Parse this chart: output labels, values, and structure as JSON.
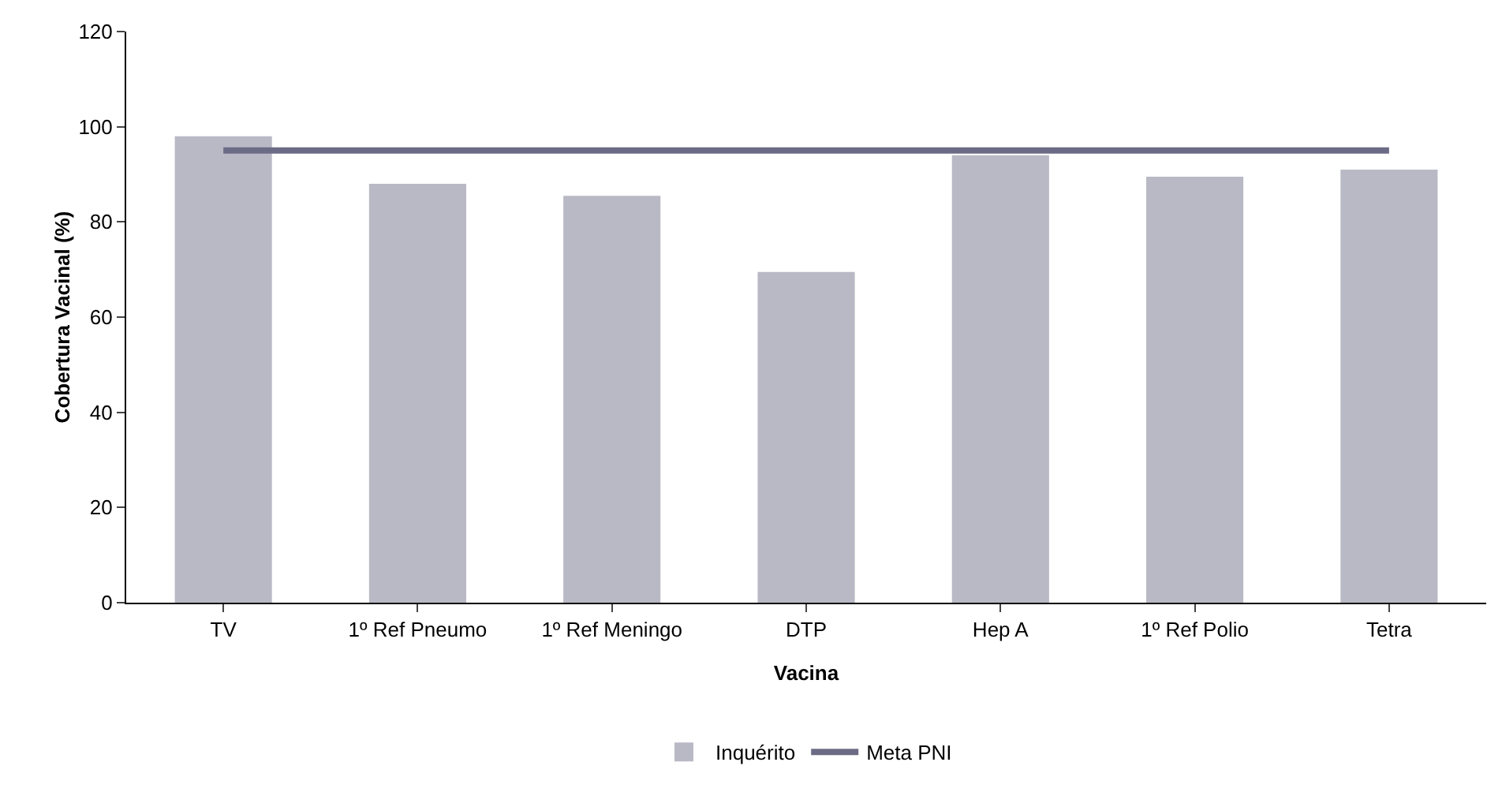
{
  "chart_data": {
    "type": "bar",
    "xlabel": "Vacina",
    "ylabel": "Cobertura Vacinal (%)",
    "categories": [
      "TV",
      "1º Ref Pneumo",
      "1º Ref Meningo",
      "DTP",
      "Hep A",
      "1º Ref Polio",
      "Tetra"
    ],
    "series": [
      {
        "name": "Inquérito",
        "color": "#b9b9c6",
        "values": [
          98,
          88,
          85.5,
          69.5,
          94,
          89.5,
          91
        ]
      },
      {
        "name": "Meta PNI",
        "type": "line",
        "color": "#6b6b86",
        "values": [
          95,
          95,
          95,
          95,
          95,
          95,
          95
        ]
      }
    ],
    "ylim": [
      0,
      120
    ],
    "yticks": [
      0,
      20,
      40,
      60,
      80,
      100,
      120
    ],
    "grid": false,
    "legend": "bottom",
    "marker": "none",
    "line_style": "solid"
  }
}
